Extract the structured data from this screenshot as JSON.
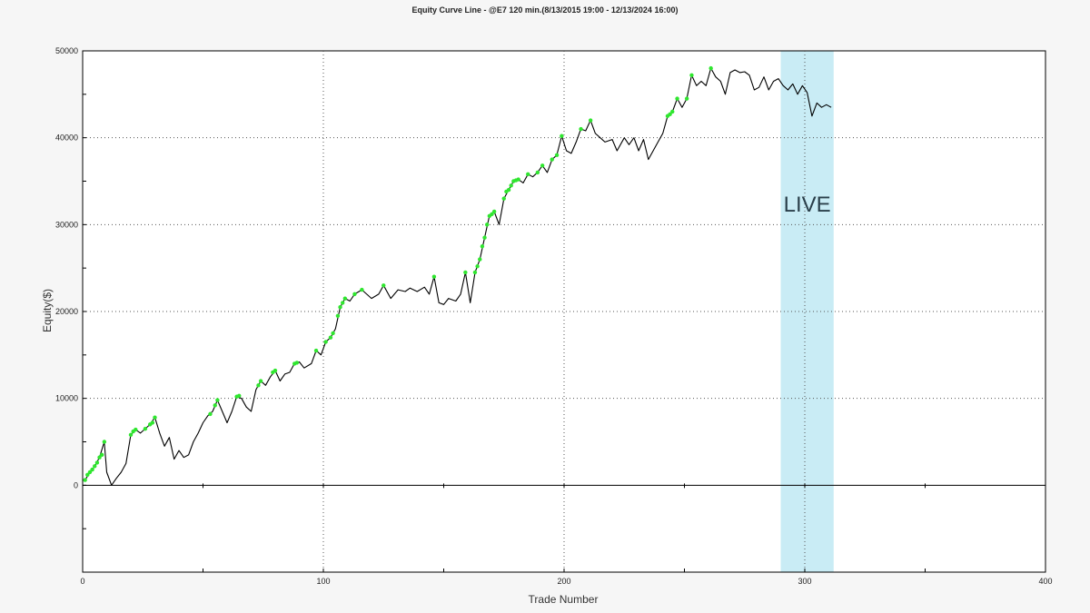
{
  "chart_data": {
    "type": "line",
    "title": "Equity Curve Line - @E7 120 min.(8/13/2015 19:00 - 12/13/2024 16:00)",
    "xlabel": "Trade Number",
    "ylabel": "Equity($)",
    "xlim": [
      0,
      400
    ],
    "ylim": [
      -10000,
      50000
    ],
    "x_ticks": [
      0,
      100,
      200,
      300,
      400
    ],
    "y_ticks": [
      0,
      10000,
      20000,
      30000,
      40000,
      50000
    ],
    "grid": "dotted",
    "annotation": {
      "label": "LIVE",
      "x_start": 290,
      "x_end": 312,
      "color": "#c9ecf5"
    },
    "series": [
      {
        "color": "#000000",
        "highlight_color": "#2fe62f",
        "points": [
          [
            1,
            600
          ],
          [
            3,
            1500
          ],
          [
            5,
            2200
          ],
          [
            7,
            3200
          ],
          [
            9,
            5000
          ],
          [
            10,
            1500
          ],
          [
            12,
            0
          ],
          [
            14,
            800
          ],
          [
            16,
            1500
          ],
          [
            18,
            2500
          ],
          [
            20,
            5800
          ],
          [
            22,
            6400
          ],
          [
            24,
            6000
          ],
          [
            26,
            6500
          ],
          [
            28,
            7000
          ],
          [
            30,
            7800
          ],
          [
            32,
            6000
          ],
          [
            34,
            4500
          ],
          [
            36,
            5500
          ],
          [
            38,
            3000
          ],
          [
            40,
            4000
          ],
          [
            42,
            3200
          ],
          [
            44,
            3500
          ],
          [
            46,
            5000
          ],
          [
            48,
            6000
          ],
          [
            50,
            7200
          ],
          [
            52,
            8000
          ],
          [
            54,
            8500
          ],
          [
            56,
            9800
          ],
          [
            58,
            8500
          ],
          [
            60,
            7200
          ],
          [
            62,
            8500
          ],
          [
            64,
            10200
          ],
          [
            66,
            10000
          ],
          [
            68,
            9000
          ],
          [
            70,
            8500
          ],
          [
            72,
            11000
          ],
          [
            74,
            12000
          ],
          [
            76,
            11500
          ],
          [
            78,
            12500
          ],
          [
            80,
            13200
          ],
          [
            82,
            12000
          ],
          [
            84,
            12800
          ],
          [
            86,
            13000
          ],
          [
            88,
            14000
          ],
          [
            90,
            14200
          ],
          [
            92,
            13500
          ],
          [
            95,
            14000
          ],
          [
            97,
            15500
          ],
          [
            99,
            15000
          ],
          [
            101,
            16500
          ],
          [
            103,
            17000
          ],
          [
            105,
            18000
          ],
          [
            107,
            20500
          ],
          [
            109,
            21500
          ],
          [
            111,
            21200
          ],
          [
            113,
            22000
          ],
          [
            116,
            22500
          ],
          [
            118,
            22000
          ],
          [
            120,
            21500
          ],
          [
            123,
            22000
          ],
          [
            125,
            23000
          ],
          [
            128,
            21500
          ],
          [
            131,
            22500
          ],
          [
            134,
            22300
          ],
          [
            136,
            22700
          ],
          [
            139,
            22300
          ],
          [
            142,
            22800
          ],
          [
            144,
            22000
          ],
          [
            146,
            24000
          ],
          [
            148,
            21000
          ],
          [
            150,
            20800
          ],
          [
            152,
            21500
          ],
          [
            155,
            21200
          ],
          [
            157,
            22000
          ],
          [
            159,
            24500
          ],
          [
            161,
            21000
          ],
          [
            163,
            24500
          ],
          [
            165,
            26000
          ],
          [
            167,
            28500
          ],
          [
            169,
            31000
          ],
          [
            171,
            31500
          ],
          [
            173,
            30000
          ],
          [
            175,
            33000
          ],
          [
            177,
            34000
          ],
          [
            179,
            35000
          ],
          [
            181,
            35200
          ],
          [
            183,
            34800
          ],
          [
            185,
            35800
          ],
          [
            187,
            35500
          ],
          [
            189,
            36000
          ],
          [
            191,
            36800
          ],
          [
            193,
            36000
          ],
          [
            195,
            37500
          ],
          [
            197,
            38000
          ],
          [
            199,
            40200
          ],
          [
            201,
            38500
          ],
          [
            203,
            38200
          ],
          [
            205,
            39500
          ],
          [
            207,
            41000
          ],
          [
            209,
            40800
          ],
          [
            211,
            42000
          ],
          [
            213,
            40500
          ],
          [
            215,
            40000
          ],
          [
            217,
            39500
          ],
          [
            220,
            39800
          ],
          [
            222,
            38500
          ],
          [
            225,
            40000
          ],
          [
            227,
            39200
          ],
          [
            229,
            40000
          ],
          [
            231,
            38500
          ],
          [
            233,
            39800
          ],
          [
            235,
            37500
          ],
          [
            237,
            38500
          ],
          [
            239,
            39500
          ],
          [
            241,
            40500
          ],
          [
            243,
            42500
          ],
          [
            245,
            43000
          ],
          [
            247,
            44500
          ],
          [
            249,
            43500
          ],
          [
            251,
            44500
          ],
          [
            253,
            47200
          ],
          [
            255,
            46000
          ],
          [
            257,
            46500
          ],
          [
            259,
            46000
          ],
          [
            261,
            48000
          ],
          [
            263,
            47000
          ],
          [
            265,
            46500
          ],
          [
            267,
            45000
          ],
          [
            269,
            47500
          ],
          [
            271,
            47800
          ],
          [
            273,
            47500
          ],
          [
            275,
            47600
          ],
          [
            277,
            47200
          ],
          [
            279,
            45500
          ],
          [
            281,
            45800
          ],
          [
            283,
            47000
          ],
          [
            285,
            45500
          ],
          [
            287,
            46500
          ],
          [
            289,
            46800
          ],
          [
            291,
            46000
          ],
          [
            293,
            45500
          ],
          [
            295,
            46200
          ],
          [
            297,
            45000
          ],
          [
            299,
            46000
          ],
          [
            301,
            45200
          ],
          [
            303,
            42500
          ],
          [
            305,
            44000
          ],
          [
            307,
            43500
          ],
          [
            309,
            43800
          ],
          [
            311,
            43500
          ]
        ],
        "highlights": [
          [
            1,
            600
          ],
          [
            2,
            1200
          ],
          [
            3,
            1500
          ],
          [
            4,
            1800
          ],
          [
            5,
            2200
          ],
          [
            6,
            2600
          ],
          [
            7,
            3200
          ],
          [
            8,
            3500
          ],
          [
            9,
            5000
          ],
          [
            20,
            5800
          ],
          [
            21,
            6200
          ],
          [
            22,
            6400
          ],
          [
            26,
            6500
          ],
          [
            28,
            7000
          ],
          [
            29,
            7200
          ],
          [
            30,
            7800
          ],
          [
            53,
            8200
          ],
          [
            55,
            9200
          ],
          [
            56,
            9800
          ],
          [
            64,
            10200
          ],
          [
            65,
            10300
          ],
          [
            73,
            11500
          ],
          [
            74,
            12000
          ],
          [
            79,
            13000
          ],
          [
            80,
            13200
          ],
          [
            88,
            14000
          ],
          [
            89,
            14100
          ],
          [
            97,
            15500
          ],
          [
            101,
            16500
          ],
          [
            103,
            17000
          ],
          [
            104,
            17500
          ],
          [
            106,
            19500
          ],
          [
            107,
            20500
          ],
          [
            108,
            21000
          ],
          [
            109,
            21500
          ],
          [
            113,
            22000
          ],
          [
            116,
            22500
          ],
          [
            125,
            23000
          ],
          [
            146,
            24000
          ],
          [
            159,
            24500
          ],
          [
            163,
            24500
          ],
          [
            164,
            25200
          ],
          [
            165,
            26000
          ],
          [
            166,
            27500
          ],
          [
            167,
            28500
          ],
          [
            168,
            30000
          ],
          [
            169,
            31000
          ],
          [
            170,
            31200
          ],
          [
            171,
            31500
          ],
          [
            175,
            33000
          ],
          [
            176,
            33800
          ],
          [
            177,
            34000
          ],
          [
            178,
            34500
          ],
          [
            179,
            35000
          ],
          [
            180,
            35100
          ],
          [
            181,
            35200
          ],
          [
            185,
            35800
          ],
          [
            189,
            36000
          ],
          [
            191,
            36800
          ],
          [
            195,
            37500
          ],
          [
            197,
            38000
          ],
          [
            199,
            40200
          ],
          [
            207,
            41000
          ],
          [
            211,
            42000
          ],
          [
            243,
            42500
          ],
          [
            244,
            42700
          ],
          [
            245,
            43000
          ],
          [
            247,
            44500
          ],
          [
            251,
            44500
          ],
          [
            253,
            47200
          ],
          [
            261,
            48000
          ]
        ]
      }
    ]
  }
}
